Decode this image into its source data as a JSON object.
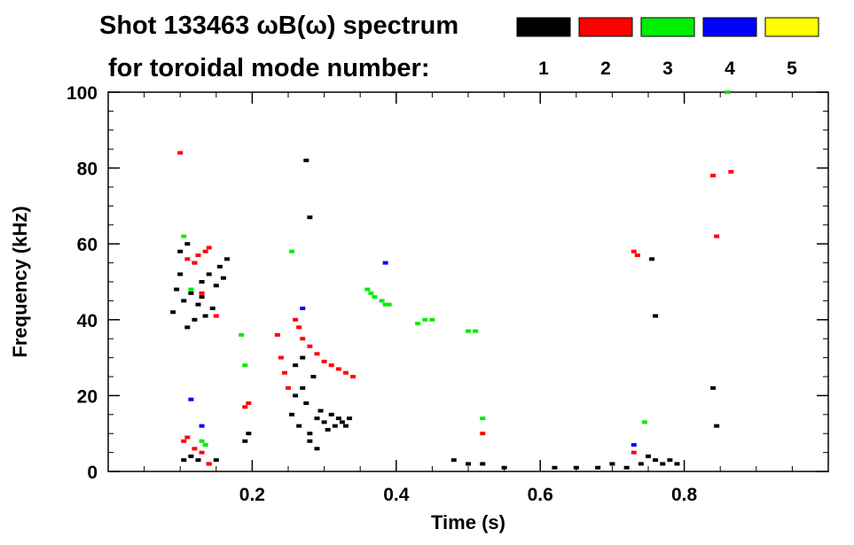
{
  "chart_data": {
    "type": "scatter",
    "title_line1": "Shot 133463 ωB(ω) spectrum",
    "title_line2": "for toroidal mode number:",
    "xlabel": "Time (s)",
    "ylabel": "Frequency (kHz)",
    "xlim": [
      0.0,
      1.0
    ],
    "ylim": [
      0,
      100
    ],
    "x_ticks": [
      0.2,
      0.4,
      0.6,
      0.8
    ],
    "x_tick_labels": [
      "0.2",
      "0.4",
      "0.6",
      "0.8"
    ],
    "y_ticks": [
      0,
      20,
      40,
      60,
      80,
      100
    ],
    "y_tick_labels": [
      "0",
      "20",
      "40",
      "60",
      "80",
      "100"
    ],
    "grid": false,
    "legend_placement": "top-right",
    "series": [
      {
        "name": "1",
        "color": "#000000",
        "points": [
          [
            0.09,
            42
          ],
          [
            0.095,
            48
          ],
          [
            0.1,
            52
          ],
          [
            0.105,
            45
          ],
          [
            0.11,
            38
          ],
          [
            0.115,
            47
          ],
          [
            0.12,
            55
          ],
          [
            0.125,
            44
          ],
          [
            0.13,
            50
          ],
          [
            0.135,
            41
          ],
          [
            0.1,
            58
          ],
          [
            0.11,
            60
          ],
          [
            0.12,
            40
          ],
          [
            0.13,
            46
          ],
          [
            0.14,
            52
          ],
          [
            0.145,
            43
          ],
          [
            0.15,
            49
          ],
          [
            0.155,
            54
          ],
          [
            0.16,
            51
          ],
          [
            0.165,
            56
          ],
          [
            0.105,
            3
          ],
          [
            0.115,
            4
          ],
          [
            0.125,
            3
          ],
          [
            0.14,
            2
          ],
          [
            0.15,
            3
          ],
          [
            0.19,
            8
          ],
          [
            0.195,
            10
          ],
          [
            0.255,
            15
          ],
          [
            0.26,
            20
          ],
          [
            0.265,
            12
          ],
          [
            0.27,
            22
          ],
          [
            0.275,
            18
          ],
          [
            0.28,
            10
          ],
          [
            0.285,
            25
          ],
          [
            0.29,
            14
          ],
          [
            0.295,
            16
          ],
          [
            0.3,
            13
          ],
          [
            0.305,
            11
          ],
          [
            0.31,
            15
          ],
          [
            0.315,
            12
          ],
          [
            0.32,
            14
          ],
          [
            0.325,
            13
          ],
          [
            0.33,
            12
          ],
          [
            0.335,
            14
          ],
          [
            0.26,
            28
          ],
          [
            0.27,
            30
          ],
          [
            0.28,
            8
          ],
          [
            0.29,
            6
          ],
          [
            0.48,
            3
          ],
          [
            0.5,
            2
          ],
          [
            0.52,
            2
          ],
          [
            0.55,
            1
          ],
          [
            0.62,
            1
          ],
          [
            0.65,
            1
          ],
          [
            0.68,
            1
          ],
          [
            0.7,
            2
          ],
          [
            0.72,
            1
          ],
          [
            0.74,
            2
          ],
          [
            0.75,
            4
          ],
          [
            0.76,
            3
          ],
          [
            0.77,
            2
          ],
          [
            0.78,
            3
          ],
          [
            0.79,
            2
          ],
          [
            0.76,
            41
          ],
          [
            0.755,
            56
          ],
          [
            0.84,
            22
          ],
          [
            0.845,
            12
          ],
          [
            0.86,
            100
          ],
          [
            0.275,
            82
          ],
          [
            0.28,
            67
          ]
        ]
      },
      {
        "name": "2",
        "color": "#ff0000",
        "points": [
          [
            0.1,
            84
          ],
          [
            0.11,
            56
          ],
          [
            0.12,
            55
          ],
          [
            0.125,
            57
          ],
          [
            0.13,
            47
          ],
          [
            0.135,
            58
          ],
          [
            0.14,
            59
          ],
          [
            0.15,
            41
          ],
          [
            0.105,
            8
          ],
          [
            0.11,
            9
          ],
          [
            0.12,
            6
          ],
          [
            0.13,
            5
          ],
          [
            0.14,
            2
          ],
          [
            0.19,
            17
          ],
          [
            0.195,
            18
          ],
          [
            0.235,
            36
          ],
          [
            0.24,
            30
          ],
          [
            0.245,
            26
          ],
          [
            0.25,
            22
          ],
          [
            0.26,
            40
          ],
          [
            0.265,
            38
          ],
          [
            0.27,
            35
          ],
          [
            0.28,
            33
          ],
          [
            0.29,
            31
          ],
          [
            0.3,
            29
          ],
          [
            0.31,
            28
          ],
          [
            0.32,
            27
          ],
          [
            0.33,
            26
          ],
          [
            0.34,
            25
          ],
          [
            0.52,
            10
          ],
          [
            0.73,
            58
          ],
          [
            0.735,
            57
          ],
          [
            0.73,
            5
          ],
          [
            0.84,
            78
          ],
          [
            0.845,
            62
          ],
          [
            0.865,
            79
          ]
        ]
      },
      {
        "name": "3",
        "color": "#00ee00",
        "points": [
          [
            0.105,
            62
          ],
          [
            0.115,
            48
          ],
          [
            0.13,
            8
          ],
          [
            0.135,
            7
          ],
          [
            0.185,
            36
          ],
          [
            0.19,
            28
          ],
          [
            0.255,
            58
          ],
          [
            0.36,
            48
          ],
          [
            0.365,
            47
          ],
          [
            0.37,
            46
          ],
          [
            0.38,
            45
          ],
          [
            0.385,
            44
          ],
          [
            0.39,
            44
          ],
          [
            0.43,
            39
          ],
          [
            0.44,
            40
          ],
          [
            0.45,
            40
          ],
          [
            0.5,
            37
          ],
          [
            0.51,
            37
          ],
          [
            0.52,
            14
          ],
          [
            0.745,
            13
          ],
          [
            0.86,
            100
          ]
        ]
      },
      {
        "name": "4",
        "color": "#0000ff",
        "points": [
          [
            0.115,
            19
          ],
          [
            0.13,
            12
          ],
          [
            0.27,
            43
          ],
          [
            0.385,
            55
          ],
          [
            0.73,
            7
          ]
        ]
      },
      {
        "name": "5",
        "color": "#ffff00",
        "points": []
      }
    ]
  }
}
